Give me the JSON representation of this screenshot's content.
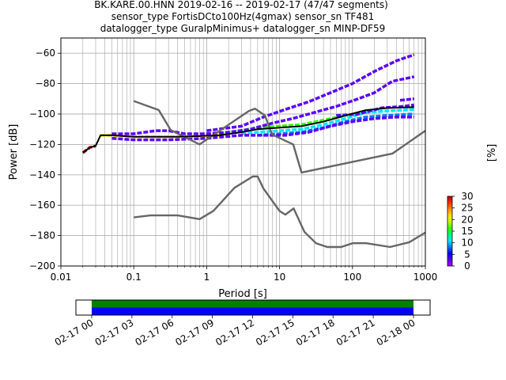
{
  "title": {
    "line1": "BK.KARE.00.HNN   2019-02-16 -- 2019-02-17  (47/47 segments)",
    "line2": "sensor_type FortisDCto100Hz(4gmax) sensor_sn TF481",
    "line3": "datalogger_type GuralpMinimus+ datalogger_sn MINP-DF59"
  },
  "chart_data": [
    {
      "type": "heatmap",
      "xlabel": "Period [s]",
      "ylabel": "Power [dB]",
      "xscale": "log",
      "xlim": [
        0.01,
        1000
      ],
      "ylim": [
        -200,
        -50
      ],
      "x_ticks": [
        {
          "v": 0.01,
          "label": "0.01"
        },
        {
          "v": 0.1,
          "label": "0.1"
        },
        {
          "v": 1,
          "label": "1"
        },
        {
          "v": 10,
          "label": "10"
        },
        {
          "v": 100,
          "label": "100"
        },
        {
          "v": 1000,
          "label": "1000"
        }
      ],
      "y_ticks": [
        {
          "v": -60,
          "label": "−60"
        },
        {
          "v": -80,
          "label": "−80"
        },
        {
          "v": -100,
          "label": "−100"
        },
        {
          "v": -120,
          "label": "−120"
        },
        {
          "v": -140,
          "label": "−140"
        },
        {
          "v": -160,
          "label": "−160"
        },
        {
          "v": -180,
          "label": "−180"
        },
        {
          "v": -200,
          "label": "−200"
        }
      ],
      "grid": true,
      "colorbar": {
        "label": "[%]",
        "range": [
          0,
          30
        ],
        "ticks": [
          {
            "v": 0,
            "label": "0"
          },
          {
            "v": 5,
            "label": "5"
          },
          {
            "v": 10,
            "label": "10"
          },
          {
            "v": 15,
            "label": "15"
          },
          {
            "v": 20,
            "label": "20"
          },
          {
            "v": 25,
            "label": "25"
          },
          {
            "v": 30,
            "label": "30"
          }
        ],
        "colormap": [
          "#ffffff",
          "#aa00ff",
          "#5a00ff",
          "#0000ff",
          "#0078ff",
          "#00e6ff",
          "#00ff73",
          "#33ff00",
          "#c8ff00",
          "#ffe000",
          "#ff8c00",
          "#ff2a00",
          "#b40000"
        ]
      },
      "noise_models": [
        {
          "name": "NHNM",
          "points": [
            [
              0.1,
              -91.5
            ],
            [
              0.22,
              -97.4
            ],
            [
              0.32,
              -110.5
            ],
            [
              0.8,
              -120
            ],
            [
              3.8,
              -98
            ],
            [
              4.6,
              -96.5
            ],
            [
              6.3,
              -101
            ],
            [
              7.9,
              -113.5
            ],
            [
              15.4,
              -120
            ],
            [
              20,
              -138.5
            ],
            [
              354.8,
              -126
            ],
            [
              1000,
              -111
            ]
          ]
        },
        {
          "name": "NLNM",
          "points": [
            [
              0.1,
              -168
            ],
            [
              0.17,
              -166.7
            ],
            [
              0.4,
              -166.7
            ],
            [
              0.8,
              -169.2
            ],
            [
              1.24,
              -163.7
            ],
            [
              2.4,
              -148.6
            ],
            [
              4.3,
              -141.1
            ],
            [
              5,
              -141.1
            ],
            [
              6,
              -149
            ],
            [
              10,
              -163.8
            ],
            [
              12,
              -166.2
            ],
            [
              15.6,
              -162.1
            ],
            [
              21.9,
              -177.5
            ],
            [
              31.6,
              -185
            ],
            [
              45,
              -187.5
            ],
            [
              70,
              -187.5
            ],
            [
              101,
              -185
            ],
            [
              154,
              -185
            ],
            [
              328,
              -187.5
            ],
            [
              600,
              -184.4
            ],
            [
              1000,
              -178
            ]
          ]
        }
      ],
      "median_curve": [
        [
          0.02,
          -125.5
        ],
        [
          0.025,
          -122
        ],
        [
          0.03,
          -121
        ],
        [
          0.035,
          -114
        ],
        [
          0.05,
          -114
        ],
        [
          0.1,
          -115
        ],
        [
          0.2,
          -115
        ],
        [
          0.4,
          -115
        ],
        [
          0.8,
          -114.5
        ],
        [
          1.5,
          -114
        ],
        [
          3,
          -112
        ],
        [
          5,
          -110
        ],
        [
          10,
          -109
        ],
        [
          20,
          -108
        ],
        [
          40,
          -105
        ],
        [
          80,
          -101
        ],
        [
          150,
          -97.5
        ],
        [
          300,
          -96
        ],
        [
          700,
          -95.5
        ]
      ],
      "density_bands": [
        {
          "level": 30,
          "points": [
            [
              0.02,
              -125.5
            ],
            [
              0.025,
              -122
            ],
            [
              0.03,
              -121
            ]
          ]
        },
        {
          "level": 22,
          "points": [
            [
              0.035,
              -114
            ],
            [
              0.05,
              -114
            ],
            [
              0.1,
              -115
            ],
            [
              0.2,
              -115
            ],
            [
              0.4,
              -115
            ],
            [
              0.8,
              -114.5
            ],
            [
              1.5,
              -114
            ]
          ]
        },
        {
          "level": 17,
          "points": [
            [
              1.5,
              -113
            ],
            [
              3,
              -111
            ],
            [
              5,
              -109
            ],
            [
              10,
              -108
            ],
            [
              20,
              -107
            ],
            [
              40,
              -104
            ],
            [
              80,
              -101
            ]
          ]
        },
        {
          "level": 12,
          "points": [
            [
              3,
              -113
            ],
            [
              5,
              -112
            ],
            [
              10,
              -111
            ],
            [
              20,
              -110
            ],
            [
              40,
              -107
            ],
            [
              80,
              -103
            ],
            [
              150,
              -99
            ],
            [
              300,
              -98
            ],
            [
              700,
              -97
            ]
          ]
        },
        {
          "level": 8,
          "points": [
            [
              5,
              -114
            ],
            [
              10,
              -113
            ],
            [
              20,
              -112
            ],
            [
              40,
              -109
            ],
            [
              80,
              -105
            ],
            [
              150,
              -102
            ],
            [
              300,
              -101
            ],
            [
              700,
              -100
            ]
          ]
        },
        {
          "level": 4,
          "points": [
            [
              0.05,
              -113
            ],
            [
              0.1,
              -113
            ],
            [
              0.2,
              -111
            ],
            [
              0.3,
              -111
            ],
            [
              0.5,
              -113
            ],
            [
              1,
              -113
            ],
            [
              2,
              -112
            ],
            [
              4,
              -110
            ],
            [
              8,
              -106
            ],
            [
              15,
              -103
            ],
            [
              30,
              -99
            ],
            [
              60,
              -95
            ],
            [
              120,
              -90
            ],
            [
              200,
              -86
            ],
            [
              350,
              -78.5
            ],
            [
              700,
              -75.5
            ]
          ]
        },
        {
          "level": 3,
          "points": [
            [
              0.05,
              -116
            ],
            [
              0.1,
              -117
            ],
            [
              0.3,
              -117
            ],
            [
              1,
              -116
            ],
            [
              3,
              -114
            ],
            [
              6,
              -114
            ],
            [
              12,
              -114
            ],
            [
              25,
              -112
            ],
            [
              50,
              -108
            ],
            [
              100,
              -105
            ],
            [
              200,
              -103
            ],
            [
              400,
              -102
            ],
            [
              700,
              -102
            ]
          ]
        },
        {
          "level": 2,
          "points": [
            [
              1,
              -111
            ],
            [
              3,
              -108
            ],
            [
              6,
              -102
            ],
            [
              12,
              -97
            ],
            [
              25,
              -92
            ],
            [
              50,
              -86
            ],
            [
              100,
              -80
            ],
            [
              200,
              -72
            ],
            [
              400,
              -65
            ],
            [
              700,
              -61
            ]
          ]
        },
        {
          "level": 2,
          "points": [
            [
              60,
              -101
            ],
            [
              120,
              -100
            ],
            [
              250,
              -96
            ],
            [
              500,
              -95
            ],
            [
              700,
              -94
            ]
          ]
        },
        {
          "level": 2,
          "points": [
            [
              450,
              -91
            ],
            [
              700,
              -90
            ]
          ]
        }
      ]
    },
    {
      "type": "heatmap",
      "name": "data-availability",
      "x_ticks": [
        "02-17 00",
        "02-17 03",
        "02-17 06",
        "02-17 09",
        "02-17 12",
        "02-17 15",
        "02-17 18",
        "02-17 21",
        "02-18 00"
      ],
      "x_range": [
        "02-16 21:30",
        "02-18 03:00"
      ],
      "bars": [
        {
          "color": "#008000",
          "start": "02-17 00",
          "end": "02-18 00"
        },
        {
          "color": "#0000ff",
          "start": "02-17 00",
          "end": "02-18 00"
        }
      ]
    }
  ]
}
